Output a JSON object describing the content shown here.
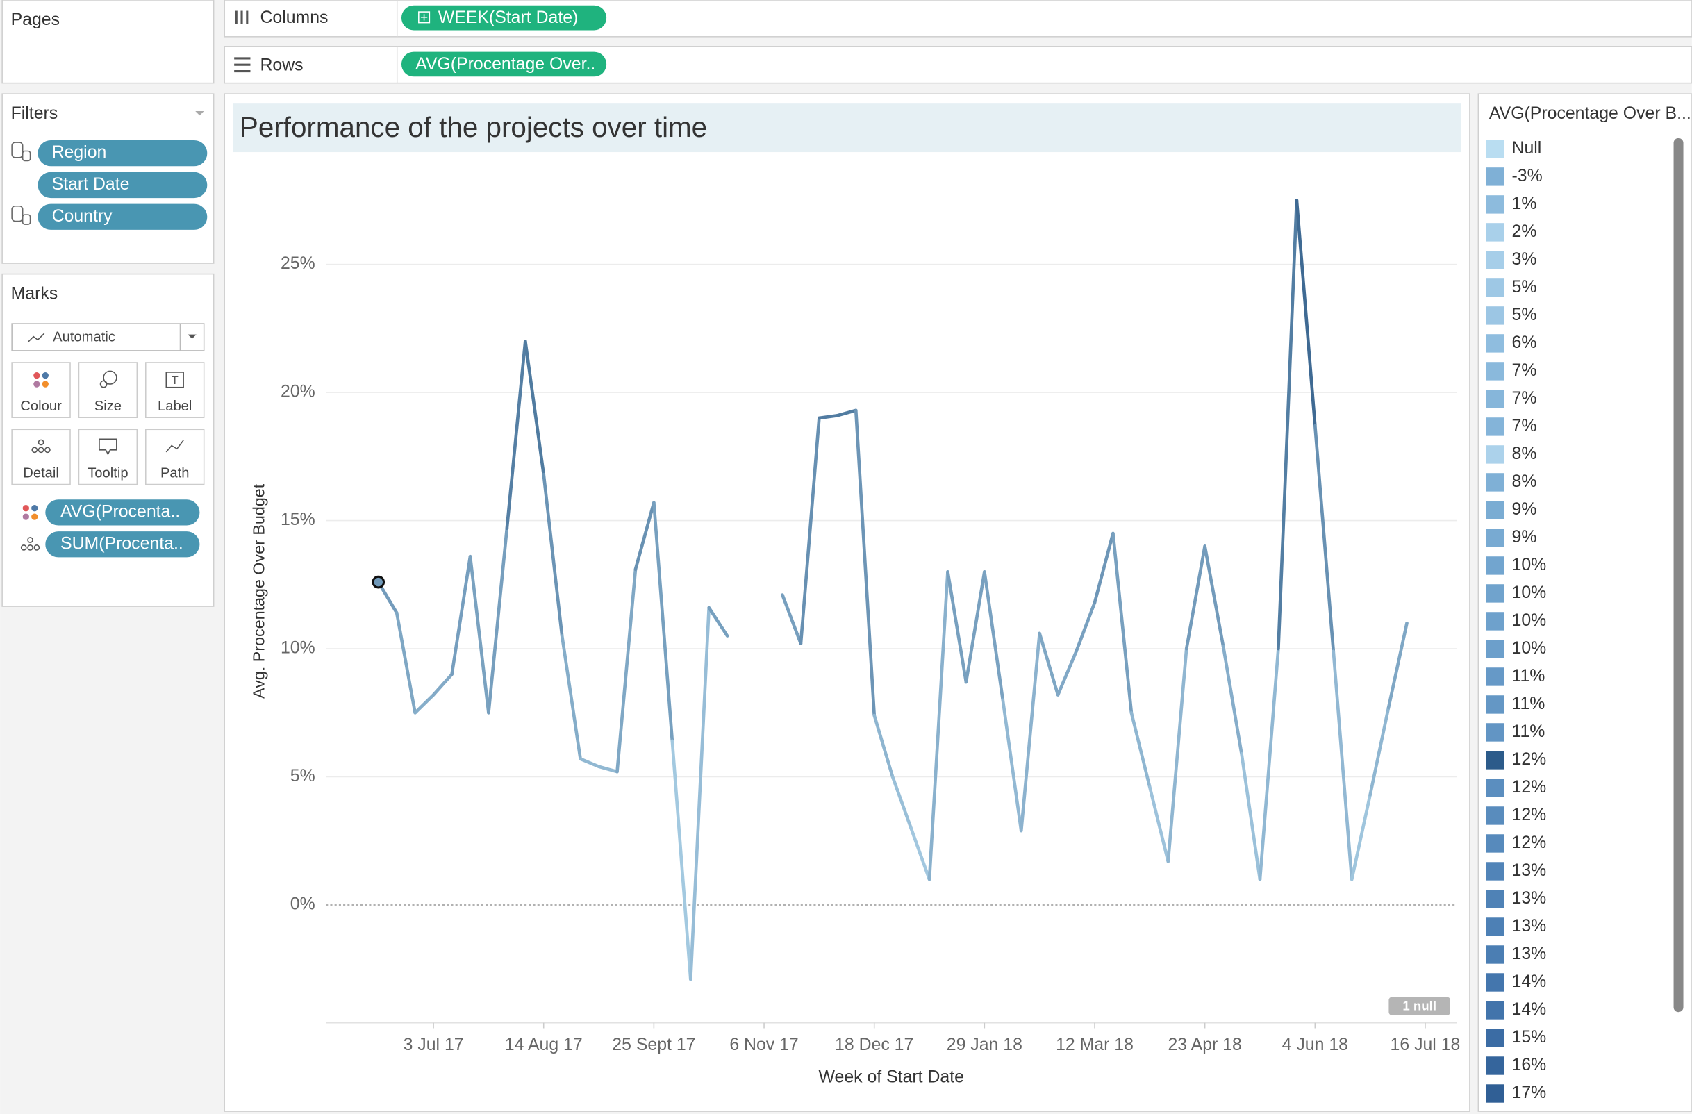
{
  "pages": {
    "title": "Pages"
  },
  "shelves": {
    "columns": {
      "label": "Columns",
      "pill": "WEEK(Start Date)"
    },
    "rows": {
      "label": "Rows",
      "pill": "AVG(Procentage Over.."
    }
  },
  "filters": {
    "title": "Filters",
    "items": [
      "Region",
      "Start Date",
      "Country"
    ]
  },
  "marks": {
    "title": "Marks",
    "type": "Automatic",
    "buttons": [
      "Colour",
      "Size",
      "Label",
      "Detail",
      "Tooltip",
      "Path"
    ],
    "fields": [
      "AVG(Procenta..",
      "SUM(Procenta.."
    ]
  },
  "chart_data": {
    "type": "line",
    "title": "Performance of the projects over time",
    "x_label": "Week of Start Date",
    "y_label": "Avg. Procentage Over Budget",
    "null_indicator": "1 null",
    "x": [
      "2017-06-12",
      "2017-06-19",
      "2017-06-26",
      "2017-07-03",
      "2017-07-10",
      "2017-07-17",
      "2017-07-24",
      "2017-07-31",
      "2017-08-07",
      "2017-08-14",
      "2017-08-21",
      "2017-08-28",
      "2017-09-04",
      "2017-09-11",
      "2017-09-18",
      "2017-09-25",
      "2017-10-02",
      "2017-10-09",
      "2017-10-16",
      "2017-10-23",
      "2017-10-30",
      "2017-11-06",
      "2017-11-13",
      "2017-11-20",
      "2017-11-27",
      "2017-12-04",
      "2017-12-11",
      "2017-12-18",
      "2017-12-25",
      "2018-01-01",
      "2018-01-08",
      "2018-01-15",
      "2018-01-22",
      "2018-01-29",
      "2018-02-05",
      "2018-02-12",
      "2018-02-19",
      "2018-02-26",
      "2018-03-05",
      "2018-03-12",
      "2018-03-19",
      "2018-03-26",
      "2018-04-02",
      "2018-04-09",
      "2018-04-16",
      "2018-04-23",
      "2018-04-30",
      "2018-05-07",
      "2018-05-14",
      "2018-05-21",
      "2018-05-28",
      "2018-06-04",
      "2018-06-11",
      "2018-06-18",
      "2018-06-25",
      "2018-07-02",
      "2018-07-09"
    ],
    "values": [
      12.6,
      11.4,
      7.5,
      8.2,
      9.0,
      13.6,
      7.5,
      14.7,
      22.0,
      16.8,
      10.5,
      5.7,
      5.4,
      5.2,
      13.1,
      15.7,
      6.4,
      -2.9,
      11.6,
      10.5,
      null,
      null,
      12.1,
      10.2,
      19.0,
      19.1,
      19.3,
      7.4,
      5.0,
      3.0,
      1.0,
      13.0,
      8.7,
      13.0,
      8.0,
      2.9,
      10.6,
      8.2,
      9.9,
      11.8,
      14.5,
      7.5,
      4.6,
      1.7,
      10.0,
      14.0,
      10.1,
      5.9,
      1.0,
      10.0,
      27.5,
      18.7,
      9.9,
      1.0,
      4.3,
      7.7,
      11.0
    ],
    "color_range": [
      "#b9ddf1",
      "#2a5783"
    ],
    "xlim": [
      "2017-05-23",
      "2018-07-28"
    ],
    "xticks": [
      {
        "value": "2017-07-03",
        "label": "3 Jul 17"
      },
      {
        "value": "2017-08-14",
        "label": "14 Aug 17"
      },
      {
        "value": "2017-09-25",
        "label": "25 Sept 17"
      },
      {
        "value": "2017-11-06",
        "label": "6 Nov 17"
      },
      {
        "value": "2017-12-18",
        "label": "18 Dec 17"
      },
      {
        "value": "2018-01-29",
        "label": "29 Jan 18"
      },
      {
        "value": "2018-03-12",
        "label": "12 Mar 18"
      },
      {
        "value": "2018-04-23",
        "label": "23 Apr 18"
      },
      {
        "value": "2018-06-04",
        "label": "4 Jun 18"
      },
      {
        "value": "2018-07-16",
        "label": "16 Jul 18"
      }
    ],
    "ylim": [
      -4.6,
      29
    ],
    "yticks": [
      {
        "value": 0,
        "label": "0%"
      },
      {
        "value": 5,
        "label": "5%"
      },
      {
        "value": 10,
        "label": "10%"
      },
      {
        "value": 15,
        "label": "15%"
      },
      {
        "value": 20,
        "label": "20%"
      },
      {
        "value": 25,
        "label": "25%"
      }
    ],
    "grid": true
  },
  "legend": {
    "title": "AVG(Procentage Over B...",
    "items": [
      {
        "label": "Null",
        "color": "#b9ddf1"
      },
      {
        "label": "-3%",
        "color": "#7fb0d6"
      },
      {
        "label": "1%",
        "color": "#8dbbdd"
      },
      {
        "label": "2%",
        "color": "#a9d0ea"
      },
      {
        "label": "3%",
        "color": "#a6cee9"
      },
      {
        "label": "5%",
        "color": "#9ec8e5"
      },
      {
        "label": "5%",
        "color": "#9cc6e4"
      },
      {
        "label": "6%",
        "color": "#8fbddf"
      },
      {
        "label": "7%",
        "color": "#8ab9dc"
      },
      {
        "label": "7%",
        "color": "#86b6da"
      },
      {
        "label": "7%",
        "color": "#84b4d9"
      },
      {
        "label": "8%",
        "color": "#acd2eb"
      },
      {
        "label": "8%",
        "color": "#7fb0d6"
      },
      {
        "label": "9%",
        "color": "#7aacd3"
      },
      {
        "label": "9%",
        "color": "#78aad2"
      },
      {
        "label": "10%",
        "color": "#72a5cf"
      },
      {
        "label": "10%",
        "color": "#70a3cd"
      },
      {
        "label": "10%",
        "color": "#6ea1cc"
      },
      {
        "label": "10%",
        "color": "#6c9fcb"
      },
      {
        "label": "11%",
        "color": "#6699c7"
      },
      {
        "label": "11%",
        "color": "#6497c5"
      },
      {
        "label": "11%",
        "color": "#6295c4"
      },
      {
        "label": "12%",
        "color": "#2c5b8a"
      },
      {
        "label": "12%",
        "color": "#5b8ebf"
      },
      {
        "label": "12%",
        "color": "#598cbd"
      },
      {
        "label": "12%",
        "color": "#578abc"
      },
      {
        "label": "13%",
        "color": "#5184b8"
      },
      {
        "label": "13%",
        "color": "#4f82b6"
      },
      {
        "label": "13%",
        "color": "#4d80b5"
      },
      {
        "label": "13%",
        "color": "#4b7eb3"
      },
      {
        "label": "14%",
        "color": "#4476ad"
      },
      {
        "label": "14%",
        "color": "#4274ab"
      },
      {
        "label": "15%",
        "color": "#3b6ca4"
      },
      {
        "label": "16%",
        "color": "#35659c"
      },
      {
        "label": "17%",
        "color": "#305f95"
      }
    ]
  }
}
